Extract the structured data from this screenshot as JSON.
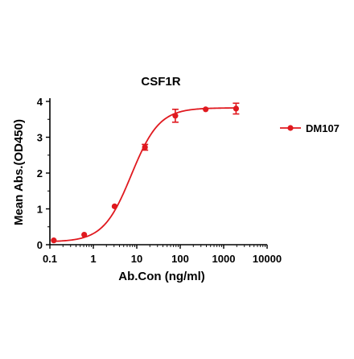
{
  "chart_data": {
    "type": "scatter",
    "title": "CSF1R",
    "xlabel": "Ab.Con (ng/ml)",
    "ylabel": "Mean Abs.(OD450)",
    "x_scale": "log",
    "xlim": [
      0.1,
      10000
    ],
    "ylim": [
      0,
      4
    ],
    "x_ticks": [
      0.1,
      1,
      10,
      100,
      1000,
      10000
    ],
    "x_tick_labels": [
      "0.1",
      "1",
      "10",
      "100",
      "1000",
      "10000"
    ],
    "y_ticks": [
      0,
      1,
      2,
      3,
      4
    ],
    "y_tick_labels": [
      "0",
      "1",
      "2",
      "3",
      "4"
    ],
    "legend_position": "right",
    "grid": false,
    "color": "#e0191f",
    "series": [
      {
        "name": "DM107",
        "x": [
          0.123,
          0.617,
          3.086,
          15.43,
          77.16,
          385.8,
          1929
        ],
        "y": [
          0.12,
          0.28,
          1.07,
          2.72,
          3.6,
          3.78,
          3.8
        ],
        "error": [
          0.02,
          0.02,
          0.03,
          0.08,
          0.18,
          0.03,
          0.15
        ]
      }
    ],
    "fit_curve": {
      "bottom": 0.08,
      "top": 3.82,
      "ec50": 7.5,
      "hill": 1.35
    }
  }
}
